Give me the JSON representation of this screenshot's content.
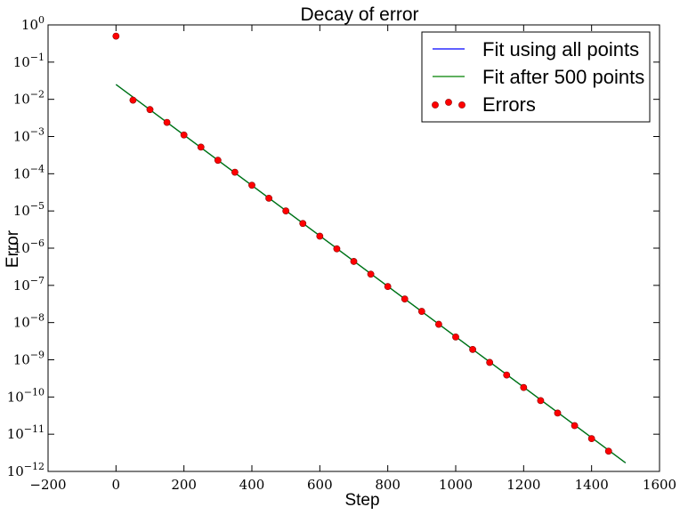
{
  "chart_data": {
    "type": "line",
    "title": "Decay of error",
    "xlabel": "Step",
    "ylabel": "Error",
    "xlim": [
      -200,
      1600
    ],
    "ylim_exponent": [
      -12,
      0
    ],
    "y_scale": "log",
    "x_ticks": [
      -200,
      0,
      200,
      400,
      600,
      800,
      1000,
      1200,
      1400,
      1600
    ],
    "x_tick_labels": [
      "−200",
      "0",
      "200",
      "400",
      "600",
      "800",
      "1000",
      "1200",
      "1400",
      "1600"
    ],
    "y_ticks_exponent": [
      0,
      -1,
      -2,
      -3,
      -4,
      -5,
      -6,
      -7,
      -8,
      -9,
      -10,
      -11,
      -12
    ],
    "legend_position": "upper right",
    "series": [
      {
        "name": "Fit using all points",
        "kind": "line",
        "color": "#0000ff",
        "x": [
          0,
          1500
        ],
        "y": [
          0.025,
          1.7e-12
        ]
      },
      {
        "name": "Fit after 500 points",
        "kind": "line",
        "color": "#008000",
        "x": [
          0,
          1500
        ],
        "y": [
          0.025,
          1.7e-12
        ]
      },
      {
        "name": "Errors",
        "kind": "scatter",
        "color": "#ff0000",
        "x": [
          0,
          50,
          100,
          150,
          200,
          250,
          300,
          350,
          400,
          450,
          500,
          550,
          600,
          650,
          700,
          750,
          800,
          850,
          900,
          950,
          1000,
          1050,
          1100,
          1150,
          1200,
          1250,
          1300,
          1350,
          1400,
          1450
        ],
        "y": [
          0.5,
          0.0095,
          0.0053,
          0.0024,
          0.0011,
          0.00052,
          0.00023,
          0.00011,
          4.9e-05,
          2.2e-05,
          1e-05,
          4.6e-06,
          2.1e-06,
          9.6e-07,
          4.4e-07,
          2e-07,
          9.3e-08,
          4.3e-08,
          2e-08,
          9e-09,
          4.1e-09,
          1.9e-09,
          8.5e-10,
          3.9e-10,
          1.8e-10,
          8e-11,
          3.7e-11,
          1.7e-11,
          7.6e-12,
          3.5e-12
        ]
      }
    ]
  }
}
